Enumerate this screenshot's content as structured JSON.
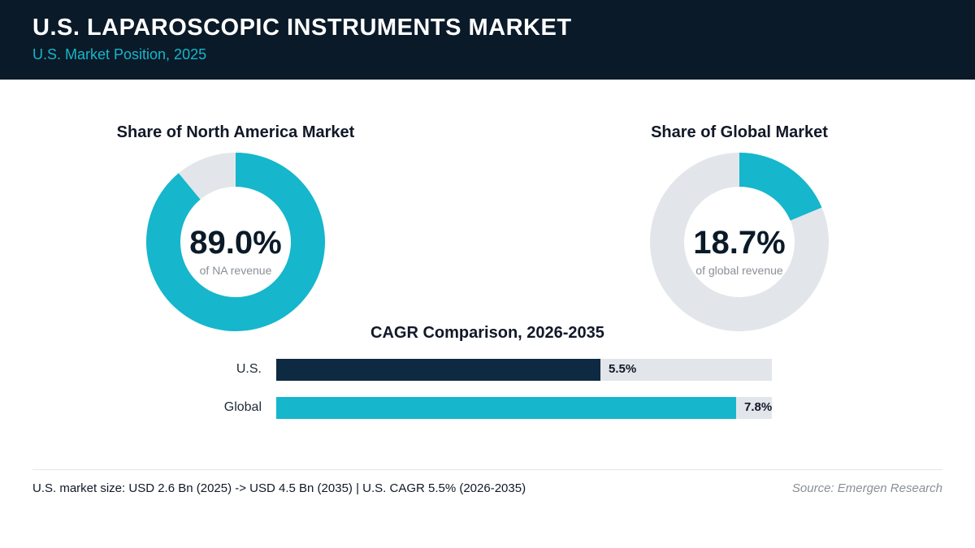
{
  "header": {
    "title": "U.S. LAPAROSCOPIC INSTRUMENTS MARKET",
    "subtitle": "U.S. Market Position, 2025"
  },
  "colors": {
    "header_bg": "#0b1a28",
    "accent": "#16b6cc",
    "us_bar": "#0e2a42",
    "track": "#e2e6ea"
  },
  "chart_data": [
    {
      "type": "pie",
      "title": "Share of North America Market",
      "center_value": "89.0%",
      "center_caption": "of NA revenue",
      "values": [
        89.0,
        11.0
      ],
      "colors": [
        "#16b6cc",
        "#e2e6ea"
      ]
    },
    {
      "type": "pie",
      "title": "Share of Global Market",
      "center_value": "18.7%",
      "center_caption": "of global revenue",
      "values": [
        18.7,
        81.3
      ],
      "colors": [
        "#16b6cc",
        "#e2e6ea"
      ]
    },
    {
      "type": "bar",
      "orientation": "horizontal",
      "title": "CAGR Comparison, 2026-2035",
      "categories": [
        "U.S.",
        "Global"
      ],
      "values": [
        5.5,
        7.8
      ],
      "value_labels": [
        "5.5%",
        "7.8%"
      ],
      "colors": [
        "#0e2a42",
        "#16b6cc"
      ],
      "xlim": [
        0,
        8.4
      ]
    }
  ],
  "footer": {
    "summary": "U.S. market size: USD 2.6 Bn (2025) -> USD 4.5 Bn (2035)  |  U.S. CAGR 5.5% (2026-2035)",
    "source": "Source: Emergen Research"
  }
}
